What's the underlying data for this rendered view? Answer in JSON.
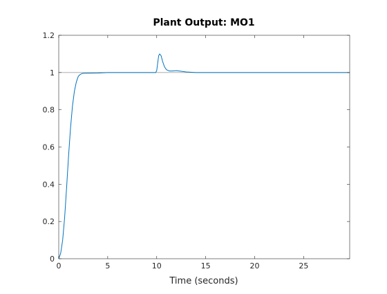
{
  "chart_data": {
    "type": "line",
    "title": "Plant Output:  MO1",
    "xlabel": "Time (seconds)",
    "ylabel": "",
    "xlim": [
      0,
      29.7
    ],
    "ylim": [
      0,
      1.2
    ],
    "xticks": [
      0,
      5,
      10,
      15,
      20,
      25
    ],
    "xtick_labels": [
      "0",
      "5",
      "10",
      "15",
      "20",
      "25"
    ],
    "yticks": [
      0,
      0.2,
      0.4,
      0.6,
      0.8,
      1,
      1.2
    ],
    "ytick_labels": [
      "0",
      "0.2",
      "0.4",
      "0.6",
      "0.8",
      "1",
      "1.2"
    ],
    "grid": false,
    "legend": "none",
    "colors": {
      "output": "#0072bd",
      "reference": "#a0a0a0",
      "axes": "#262626"
    },
    "series": [
      {
        "role": "output",
        "x": [
          0,
          0.2,
          0.4,
          0.6,
          0.8,
          1.0,
          1.2,
          1.4,
          1.6,
          1.8,
          2.0,
          2.2,
          2.4,
          2.7,
          3.0,
          4.0,
          5.0,
          7.0,
          9.0,
          9.9,
          10.0,
          10.1,
          10.2,
          10.3,
          10.45,
          10.6,
          10.8,
          11.0,
          11.3,
          11.6,
          12.0,
          12.5,
          13.0,
          14.0,
          15.0,
          20.0,
          25.0,
          29.7
        ],
        "y": [
          0,
          0.03,
          0.1,
          0.22,
          0.38,
          0.55,
          0.7,
          0.82,
          0.9,
          0.95,
          0.98,
          0.99,
          0.995,
          0.996,
          0.996,
          0.997,
          1.0,
          1.0,
          1.0,
          1.0,
          1.01,
          1.05,
          1.09,
          1.1,
          1.09,
          1.06,
          1.03,
          1.015,
          1.008,
          1.008,
          1.01,
          1.007,
          1.003,
          1.0,
          1.0,
          1.0,
          1.0,
          1.0
        ]
      },
      {
        "role": "reference",
        "x": [
          0,
          29.7
        ],
        "y": [
          1,
          1
        ]
      }
    ]
  }
}
